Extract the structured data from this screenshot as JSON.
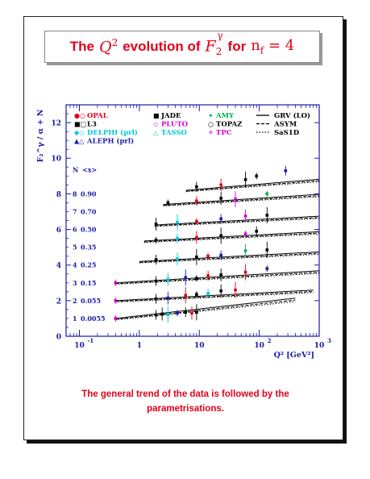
{
  "title": {
    "prefix": "The",
    "q2": "Q",
    "q2_sup": "2",
    "middle": "evolution of",
    "f2": "F",
    "f2_sub": "2",
    "f2_sup": "γ",
    "for_word": "for",
    "nf": "n",
    "nf_sub": "f",
    "nf_value": "= 4"
  },
  "caption": {
    "line1": "The general trend of the data is followed by the",
    "line2": "parametrisations."
  },
  "colors": {
    "red": "#e2001a",
    "black": "#000000",
    "cyan": "#00c8d8",
    "magenta": "#d400d4",
    "green": "#00b050",
    "axis": "#1a1aa6"
  },
  "chart_data": {
    "type": "scatter",
    "title": "",
    "xlabel": "Q² [GeV²]",
    "ylabel": "F₂^γ / α + N",
    "xscale": "log",
    "xlim": [
      0.06,
      1000
    ],
    "ylim": [
      0,
      13
    ],
    "xticks": [
      {
        "value": 0.1,
        "label": "10",
        "sup": "-1"
      },
      {
        "value": 1,
        "label": "1",
        "sup": ""
      },
      {
        "value": 10,
        "label": "10",
        "sup": ""
      },
      {
        "value": 100,
        "label": "10",
        "sup": "2"
      },
      {
        "value": 1000,
        "label": "10",
        "sup": "3"
      }
    ],
    "yticks": [
      0,
      2,
      4,
      6,
      8,
      10,
      12
    ],
    "legend": [
      {
        "label": "OPAL",
        "color": "#e2001a",
        "marker": "●○"
      },
      {
        "label": "L3",
        "color": "#000000",
        "marker": "■□"
      },
      {
        "label": "DELPHI (prl)",
        "color": "#00c8d8",
        "marker": "◆◇"
      },
      {
        "label": "ALEPH (prl)",
        "color": "#1a1aa6",
        "marker": "▲△"
      },
      {
        "label": "JADE",
        "color": "#000000",
        "marker": "■"
      },
      {
        "label": "PLUTO",
        "color": "#d400d4",
        "marker": "◇"
      },
      {
        "label": "TASSO",
        "color": "#00c8d8",
        "marker": "△"
      },
      {
        "label": "AMY",
        "color": "#00b050",
        "marker": "✦"
      },
      {
        "label": "TOPAZ",
        "color": "#000000",
        "marker": "○"
      },
      {
        "label": "TPC",
        "color": "#d400d4",
        "marker": "✳"
      },
      {
        "label": "GRV (LO)",
        "color": "#000000",
        "line": "solid"
      },
      {
        "label": "ASYM",
        "color": "#000000",
        "line": "dashed"
      },
      {
        "label": "SaS1D",
        "color": "#000000",
        "line": "dotted"
      }
    ],
    "bin_header": {
      "n": "N",
      "x": "<x>"
    },
    "bins": [
      {
        "N": "1",
        "x": "0.0055",
        "offset": 1,
        "qmin": 0.4,
        "qmax": 400,
        "slope": 0.38,
        "base": 1.0
      },
      {
        "N": "2",
        "x": "0.055",
        "offset": 2,
        "qmin": 0.4,
        "qmax": 800,
        "slope": 0.18,
        "base": 2.0
      },
      {
        "N": "3",
        "x": "0.15",
        "offset": 3,
        "qmin": 0.4,
        "qmax": 1000,
        "slope": 0.2,
        "base": 3.0
      },
      {
        "N": "4",
        "x": "0.25",
        "offset": 4,
        "qmin": 1.0,
        "qmax": 1000,
        "slope": 0.18,
        "base": 4.2
      },
      {
        "N": "5",
        "x": "0.35",
        "offset": 5,
        "qmin": 1.2,
        "qmax": 1000,
        "slope": 0.18,
        "base": 5.35
      },
      {
        "N": "6",
        "x": "0.50",
        "offset": 6,
        "qmin": 1.8,
        "qmax": 1000,
        "slope": 0.18,
        "base": 6.25
      },
      {
        "N": "7",
        "x": "0.70",
        "offset": 7,
        "qmin": 2.5,
        "qmax": 1000,
        "slope": 0.22,
        "base": 7.4
      },
      {
        "N": "8",
        "x": "0.90",
        "offset": 8,
        "qmin": 6.0,
        "qmax": 1000,
        "slope": 0.28,
        "base": 8.2
      }
    ],
    "points": [
      {
        "bin": 1,
        "q2": 0.4,
        "y": 1.0,
        "color": "#d400d4"
      },
      {
        "bin": 1,
        "q2": 1.9,
        "y": 1.2,
        "color": "#000000"
      },
      {
        "bin": 1,
        "q2": 2.4,
        "y": 1.25,
        "color": "#000000"
      },
      {
        "bin": 1,
        "q2": 3.0,
        "y": 1.22,
        "color": "#00c8d8"
      },
      {
        "bin": 1,
        "q2": 4.3,
        "y": 1.3,
        "color": "#1a1aa6"
      },
      {
        "bin": 1,
        "q2": 5.9,
        "y": 1.35,
        "color": "#000000"
      },
      {
        "bin": 1,
        "q2": 7.5,
        "y": 1.3,
        "color": "#e2001a"
      },
      {
        "bin": 1,
        "q2": 9.0,
        "y": 1.35,
        "color": "#000000"
      },
      {
        "bin": 2,
        "q2": 0.4,
        "y": 2.0,
        "color": "#d400d4"
      },
      {
        "bin": 2,
        "q2": 1.9,
        "y": 2.1,
        "color": "#000000"
      },
      {
        "bin": 2,
        "q2": 3.0,
        "y": 2.15,
        "color": "#1a1aa6"
      },
      {
        "bin": 2,
        "q2": 5.9,
        "y": 2.3,
        "color": "#e2001a"
      },
      {
        "bin": 2,
        "q2": 9.0,
        "y": 2.35,
        "color": "#000000"
      },
      {
        "bin": 2,
        "q2": 14,
        "y": 2.4,
        "color": "#00c8d8"
      },
      {
        "bin": 2,
        "q2": 23,
        "y": 2.55,
        "color": "#000000"
      },
      {
        "bin": 2,
        "q2": 40,
        "y": 2.6,
        "color": "#e2001a"
      },
      {
        "bin": 3,
        "q2": 0.4,
        "y": 3.0,
        "color": "#d400d4"
      },
      {
        "bin": 3,
        "q2": 1.9,
        "y": 3.1,
        "color": "#000000"
      },
      {
        "bin": 3,
        "q2": 3.0,
        "y": 3.2,
        "color": "#00c8d8"
      },
      {
        "bin": 3,
        "q2": 5.9,
        "y": 3.3,
        "color": "#1a1aa6"
      },
      {
        "bin": 3,
        "q2": 9.0,
        "y": 3.25,
        "color": "#000000"
      },
      {
        "bin": 3,
        "q2": 14,
        "y": 3.4,
        "color": "#e2001a"
      },
      {
        "bin": 3,
        "q2": 23,
        "y": 3.45,
        "color": "#000000"
      },
      {
        "bin": 3,
        "q2": 59,
        "y": 3.6,
        "color": "#e2001a"
      },
      {
        "bin": 3,
        "q2": 135,
        "y": 3.8,
        "color": "#1a1aa6"
      },
      {
        "bin": 4,
        "q2": 1.9,
        "y": 4.3,
        "color": "#000000"
      },
      {
        "bin": 4,
        "q2": 4.3,
        "y": 4.35,
        "color": "#00c8d8"
      },
      {
        "bin": 4,
        "q2": 9.0,
        "y": 4.45,
        "color": "#000000"
      },
      {
        "bin": 4,
        "q2": 14,
        "y": 4.5,
        "color": "#e2001a"
      },
      {
        "bin": 4,
        "q2": 23,
        "y": 4.55,
        "color": "#1a1aa6"
      },
      {
        "bin": 4,
        "q2": 59,
        "y": 4.8,
        "color": "#00b050"
      },
      {
        "bin": 4,
        "q2": 135,
        "y": 4.85,
        "color": "#000000"
      },
      {
        "bin": 5,
        "q2": 1.9,
        "y": 5.4,
        "color": "#000000"
      },
      {
        "bin": 5,
        "q2": 4.3,
        "y": 5.5,
        "color": "#00c8d8"
      },
      {
        "bin": 5,
        "q2": 9.0,
        "y": 5.55,
        "color": "#e2001a"
      },
      {
        "bin": 5,
        "q2": 23,
        "y": 5.65,
        "color": "#000000"
      },
      {
        "bin": 5,
        "q2": 59,
        "y": 5.75,
        "color": "#d400d4"
      },
      {
        "bin": 5,
        "q2": 90,
        "y": 5.9,
        "color": "#000000"
      },
      {
        "bin": 6,
        "q2": 1.9,
        "y": 6.3,
        "color": "#000000"
      },
      {
        "bin": 6,
        "q2": 4.3,
        "y": 6.4,
        "color": "#00c8d8"
      },
      {
        "bin": 6,
        "q2": 9.0,
        "y": 6.45,
        "color": "#e2001a"
      },
      {
        "bin": 6,
        "q2": 23,
        "y": 6.6,
        "color": "#1a1aa6"
      },
      {
        "bin": 6,
        "q2": 59,
        "y": 6.75,
        "color": "#d400d4"
      },
      {
        "bin": 6,
        "q2": 135,
        "y": 6.8,
        "color": "#000000"
      },
      {
        "bin": 7,
        "q2": 3.0,
        "y": 7.5,
        "color": "#000000"
      },
      {
        "bin": 7,
        "q2": 9.0,
        "y": 7.6,
        "color": "#e2001a"
      },
      {
        "bin": 7,
        "q2": 23,
        "y": 7.75,
        "color": "#000000"
      },
      {
        "bin": 7,
        "q2": 40,
        "y": 7.7,
        "color": "#d400d4"
      },
      {
        "bin": 7,
        "q2": 135,
        "y": 8.0,
        "color": "#00b050"
      },
      {
        "bin": 8,
        "q2": 9.0,
        "y": 8.4,
        "color": "#000000"
      },
      {
        "bin": 8,
        "q2": 23,
        "y": 8.5,
        "color": "#e2001a"
      },
      {
        "bin": 8,
        "q2": 59,
        "y": 8.8,
        "color": "#000000"
      },
      {
        "bin": 8,
        "q2": 90,
        "y": 9.0,
        "color": "#000000"
      },
      {
        "bin": 8,
        "q2": 275,
        "y": 9.3,
        "color": "#1a1aa6"
      }
    ],
    "grid": false
  }
}
